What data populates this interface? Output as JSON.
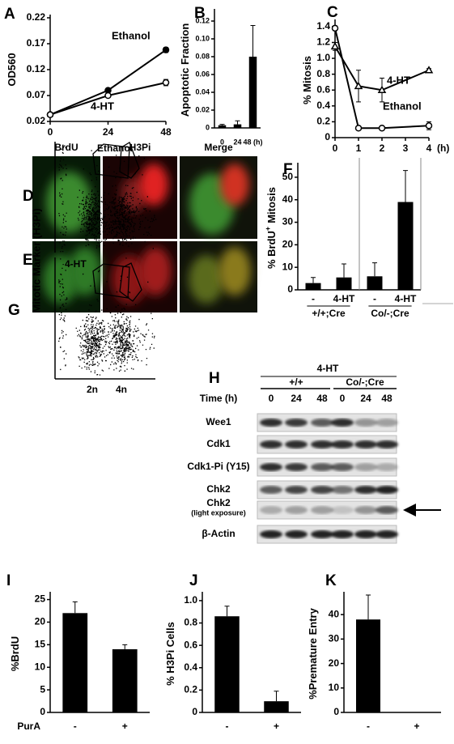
{
  "chart_data": [
    {
      "type": "line",
      "label": "A",
      "y_label": "OD560",
      "x": [
        0,
        24,
        48
      ],
      "xlim": [
        0,
        48
      ],
      "xticks": [
        0,
        24,
        48
      ],
      "ylim": [
        0.02,
        0.22
      ],
      "yticks": [
        0.02,
        0.07,
        0.12,
        0.17,
        0.22
      ],
      "series": [
        {
          "name": "Ethanol",
          "color": "#000000",
          "marker": "filled-circle",
          "values": [
            0.033,
            0.08,
            0.158
          ],
          "errors": [
            0.002,
            0.004,
            0.005
          ]
        },
        {
          "name": "4-HT",
          "color": "#000000",
          "marker": "open-circle",
          "values": [
            0.033,
            0.07,
            0.095
          ],
          "errors": [
            0.002,
            0.003,
            0.006
          ]
        }
      ]
    },
    {
      "type": "bar",
      "label": "B",
      "y_label": "Apoptotic Fraction",
      "categories": [
        "0",
        "24",
        "48 (h)"
      ],
      "values": [
        0.003,
        0.004,
        0.08
      ],
      "errors": [
        0.001,
        0.004,
        0.035
      ],
      "color": "#000000",
      "ylim": [
        0,
        0.13
      ],
      "yticks": [
        0,
        0.02,
        0.04,
        0.06,
        0.08,
        {
          "value": 0.1,
          "label": "0.10"
        },
        0.12
      ]
    },
    {
      "type": "line",
      "label": "C",
      "y_label": "% Mitosis",
      "x_label": "(h)",
      "x": [
        0,
        1,
        2,
        4
      ],
      "xlim": [
        0,
        4
      ],
      "xticks": [
        0,
        1,
        2,
        3,
        4
      ],
      "ylim": [
        0,
        1.45
      ],
      "yticks": [
        0,
        0.2,
        0.4,
        0.6,
        0.8,
        {
          "value": 1,
          "label": "1.0"
        },
        1.2,
        1.4
      ],
      "series": [
        {
          "name": "4-HT",
          "color": "#000000",
          "marker": "open-triangle",
          "values": [
            1.15,
            0.65,
            0.6,
            0.85
          ],
          "errors": [
            0.05,
            0.2,
            0.15,
            0.02
          ]
        },
        {
          "name": "Ethanol",
          "color": "#000000",
          "marker": "open-circle",
          "values": [
            1.38,
            0.12,
            0.12,
            0.15
          ],
          "errors": [
            0.03,
            0.02,
            0.02,
            0.05
          ]
        }
      ]
    },
    {
      "type": "bar",
      "label": "F",
      "y_label": "% BrdU",
      "y_label_sup": "+",
      "y_label_end": "Mitosis",
      "categories": [
        "-",
        "4-HT",
        "-",
        "4-HT"
      ],
      "group_labels": [
        "+/+;Cre",
        "Co/-;Cre"
      ],
      "values": [
        3,
        5.5,
        6,
        39
      ],
      "errors": [
        2.5,
        6,
        6,
        14
      ],
      "color": "#000000",
      "ylim": [
        0,
        55
      ],
      "yticks": [
        0,
        10,
        20,
        30,
        40,
        50
      ]
    },
    {
      "type": "bar",
      "label": "I",
      "y_label": "%BrdU",
      "x_label": "PurA",
      "categories": [
        "-",
        "+"
      ],
      "values": [
        22,
        14
      ],
      "errors": [
        2.5,
        1
      ],
      "color": "#000000",
      "ylim": [
        0,
        26
      ],
      "yticks": [
        0,
        5,
        10,
        15,
        20,
        25
      ]
    },
    {
      "type": "bar",
      "label": "J",
      "y_label": "% H3Pi Cells",
      "categories": [
        "-",
        "+"
      ],
      "values": [
        0.86,
        0.1
      ],
      "errors": [
        0.09,
        0.09
      ],
      "color": "#000000",
      "ylim": [
        0,
        1.05
      ],
      "yticks": [
        0,
        0.2,
        0.4,
        0.6,
        0.8,
        {
          "value": 1,
          "label": "1.0"
        }
      ]
    },
    {
      "type": "bar",
      "label": "K",
      "y_label": "%Premature Entry",
      "categories": [
        "-",
        "+"
      ],
      "values": [
        38,
        0
      ],
      "errors": [
        10,
        0
      ],
      "color": "#000000",
      "ylim": [
        0,
        48
      ],
      "yticks": [
        0,
        10,
        20,
        30,
        40
      ]
    }
  ],
  "figure": {
    "micro": {
      "labels": [
        "D",
        "E"
      ],
      "columns": [
        "BrdU",
        "H3Pi",
        "Merge"
      ]
    },
    "flow": {
      "label": "G",
      "conditions": [
        "Ethanol",
        "4-HT"
      ],
      "y_label": "Mitotic Marker (H3Pi)",
      "x_ticks": [
        "2n",
        "4n"
      ]
    },
    "blot": {
      "label": "H",
      "treatment": "4-HT",
      "genotypes": [
        "+/+",
        "Co/-;Cre"
      ],
      "time_label": "Time (h)",
      "times": [
        "0",
        "24",
        "48",
        "0",
        "24",
        "48"
      ],
      "rows": [
        "Wee1",
        "Cdk1",
        "Cdk1-Pi (Y15)",
        "Chk2",
        "Chk2",
        "β-Actin"
      ],
      "row_note": "(light exposure)"
    }
  }
}
